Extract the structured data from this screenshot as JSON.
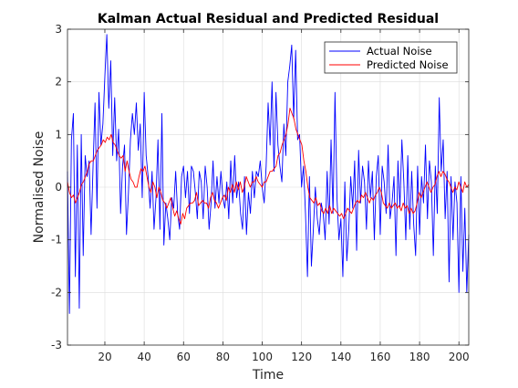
{
  "chart_data": {
    "type": "line",
    "title": "Kalman Actual Residual and Predicted Residual",
    "xlabel": "Time",
    "ylabel": "Normalised Noise",
    "xlim": [
      1,
      205
    ],
    "ylim": [
      -3,
      3
    ],
    "xticks": [
      20,
      40,
      60,
      80,
      100,
      120,
      140,
      160,
      180,
      200
    ],
    "yticks": [
      -3,
      -2,
      -1,
      0,
      1,
      2,
      3
    ],
    "grid": true,
    "legend": "top-right",
    "series": [
      {
        "name": "Actual Noise",
        "color": "#0000ff",
        "values": [
          0.3,
          -2.4,
          0.9,
          1.4,
          -1.7,
          0.8,
          -2.3,
          1.0,
          -1.3,
          0.6,
          0.2,
          0.5,
          -0.9,
          0.4,
          1.6,
          -0.4,
          1.8,
          0.8,
          1.2,
          2.1,
          2.9,
          1.5,
          2.4,
          0.6,
          1.7,
          0.5,
          1.1,
          -0.5,
          0.4,
          0.8,
          -0.9,
          -0.1,
          0.9,
          1.4,
          1.0,
          1.6,
          0.7,
          1.2,
          -0.2,
          1.8,
          0.6,
          0.2,
          -0.4,
          0.3,
          -0.8,
          -0.2,
          0.9,
          -0.8,
          1.4,
          -1.1,
          -0.3,
          -0.6,
          -1.0,
          -0.2,
          -0.4,
          0.3,
          -0.5,
          -0.8,
          0.2,
          0.4,
          -0.2,
          0.3,
          -0.5,
          0.4,
          0.3,
          -0.1,
          -0.6,
          0.3,
          0.1,
          -0.6,
          0.4,
          0.0,
          -0.8,
          -0.3,
          0.5,
          -0.4,
          0.2,
          -0.3,
          0.3,
          -0.2,
          -0.4,
          0.1,
          -0.6,
          0.5,
          -0.3,
          0.6,
          -0.2,
          0.1,
          -0.5,
          -0.8,
          0.2,
          -0.9,
          -0.1,
          -0.5,
          0.3,
          -0.2,
          0.3,
          0.2,
          0.5,
          0.0,
          -0.3,
          0.4,
          1.6,
          0.8,
          2.0,
          0.3,
          1.8,
          0.8,
          0.4,
          0.1,
          1.2,
          0.6,
          2.0,
          2.3,
          2.7,
          1.3,
          2.6,
          0.9,
          1.0,
          0.0,
          0.4,
          -0.5,
          -1.7,
          0.2,
          -1.5,
          -0.8,
          0.0,
          -0.6,
          -0.9,
          -0.3,
          -0.5,
          -1.0,
          0.3,
          -0.7,
          0.9,
          -0.5,
          1.8,
          -0.2,
          -1.0,
          -0.6,
          -1.7,
          0.1,
          -1.4,
          -0.8,
          0.2,
          -0.4,
          0.5,
          -1.2,
          0.7,
          -0.3,
          0.4,
          0.1,
          -0.8,
          0.5,
          -0.2,
          0.3,
          -1.0,
          0.2,
          0.6,
          -0.9,
          0.4,
          0.1,
          -0.5,
          0.8,
          -0.6,
          -0.3,
          0.2,
          -1.3,
          0.5,
          -0.4,
          0.9,
          0.1,
          -1.0,
          0.6,
          -0.8,
          0.3,
          -0.7,
          -1.3,
          0.4,
          -0.9,
          0.2,
          -0.3,
          0.8,
          -0.6,
          0.5,
          0.1,
          -1.3,
          0.4,
          -0.5,
          1.7,
          0.3,
          0.9,
          -0.6,
          0.3,
          -1.8,
          0.2,
          -1.0,
          0.1,
          -0.3,
          -2.0,
          0.2,
          -1.6,
          -0.4,
          -2.0,
          -0.9
        ]
      },
      {
        "name": "Predicted Noise",
        "color": "#ff0000",
        "values": [
          0.1,
          -0.1,
          -0.2,
          -0.15,
          -0.3,
          -0.2,
          -0.1,
          0.05,
          0.1,
          0.2,
          0.3,
          0.45,
          0.5,
          0.5,
          0.6,
          0.7,
          0.75,
          0.8,
          0.9,
          0.85,
          0.95,
          0.9,
          1.0,
          0.85,
          0.8,
          0.7,
          0.6,
          0.55,
          0.6,
          0.3,
          0.5,
          0.3,
          0.15,
          0.1,
          0.0,
          0.0,
          0.2,
          0.35,
          0.3,
          0.4,
          0.2,
          0.0,
          -0.1,
          0.1,
          0.0,
          -0.2,
          0.0,
          -0.1,
          -0.25,
          -0.3,
          -0.4,
          -0.3,
          -0.2,
          -0.4,
          -0.55,
          -0.45,
          -0.6,
          -0.7,
          -0.5,
          -0.6,
          -0.4,
          -0.35,
          -0.3,
          -0.3,
          -0.25,
          -0.1,
          -0.35,
          -0.3,
          -0.25,
          -0.3,
          -0.3,
          -0.4,
          -0.2,
          -0.1,
          -0.25,
          -0.3,
          -0.4,
          -0.3,
          -0.2,
          -0.15,
          -0.25,
          0.0,
          -0.1,
          0.05,
          -0.1,
          0.1,
          -0.05,
          0.1,
          -0.1,
          0.0,
          0.2,
          0.1,
          0.0,
          0.1,
          0.1,
          0.2,
          0.1,
          0.05,
          0.0,
          0.1,
          0.1,
          0.2,
          0.3,
          0.3,
          0.35,
          0.4,
          0.6,
          0.65,
          0.8,
          0.9,
          1.0,
          1.2,
          1.5,
          1.4,
          1.3,
          1.1,
          1.0,
          0.9,
          0.8,
          0.5,
          0.3,
          0.0,
          -0.2,
          -0.25,
          -0.3,
          -0.2,
          -0.35,
          -0.3,
          -0.45,
          -0.5,
          -0.4,
          -0.5,
          -0.35,
          -0.5,
          -0.4,
          -0.45,
          -0.5,
          -0.55,
          -0.5,
          -0.6,
          -0.5,
          -0.4,
          -0.45,
          -0.5,
          -0.4,
          -0.3,
          -0.25,
          -0.3,
          -0.15,
          -0.2,
          -0.1,
          -0.2,
          -0.3,
          -0.2,
          -0.25,
          -0.15,
          -0.1,
          0.0,
          -0.1,
          -0.3,
          -0.35,
          -0.4,
          -0.3,
          -0.4,
          -0.35,
          -0.3,
          -0.4,
          -0.35,
          -0.45,
          -0.3,
          -0.4,
          -0.35,
          -0.5,
          -0.4,
          -0.5,
          -0.45,
          -0.3,
          -0.1,
          -0.2,
          -0.1,
          0.0,
          0.1,
          0.0,
          -0.1,
          0.0,
          0.05,
          0.2,
          0.3,
          0.2,
          0.3,
          0.25,
          0.15,
          0.1,
          0.0,
          -0.1,
          0.0,
          -0.05,
          0.1,
          0.0,
          -0.1,
          0.1,
          0.0,
          0.05
        ]
      }
    ]
  }
}
